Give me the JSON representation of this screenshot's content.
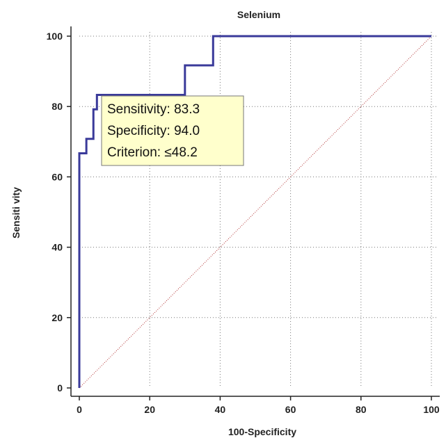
{
  "chart_data": {
    "type": "line",
    "title": "Selenium",
    "xlabel": "100-Specificity",
    "ylabel": "Sensiti vity",
    "xlim": [
      0,
      100
    ],
    "ylim": [
      0,
      100
    ],
    "xticks": [
      0,
      20,
      40,
      60,
      80,
      100
    ],
    "yticks": [
      0,
      20,
      40,
      60,
      80,
      100
    ],
    "grid": true,
    "series": [
      {
        "style": "step",
        "color": "#3a3a9a",
        "x": [
          0,
          0,
          2,
          2,
          4,
          4,
          5,
          5,
          6,
          6,
          30,
          30,
          38,
          38,
          100
        ],
        "y": [
          0,
          66.7,
          66.7,
          70.8,
          70.8,
          79.2,
          79.2,
          83.3,
          83.3,
          83.3,
          83.3,
          91.7,
          91.7,
          100,
          100
        ]
      },
      {
        "style": "dotted-diagonal",
        "color": "#b03030",
        "x": [
          0,
          100
        ],
        "y": [
          0,
          100
        ]
      }
    ],
    "annotation": {
      "lines": [
        "Sensitivity: 83.3",
        "Specificity: 94.0",
        "Criterion: ≤48.2"
      ],
      "anchor_x": 6,
      "anchor_y": 83.3,
      "background": "#ffffcc"
    }
  }
}
